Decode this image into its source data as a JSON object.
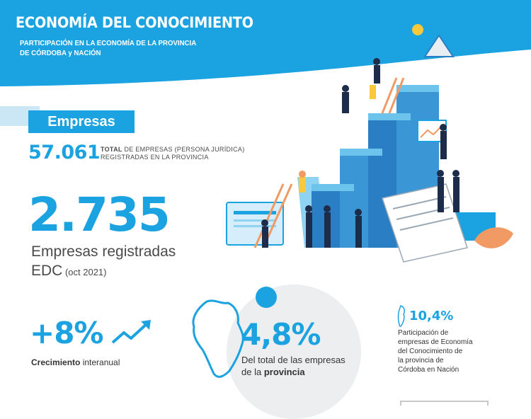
{
  "header": {
    "title": "ECONOMÍA DEL CONOCIMIENTO",
    "subtitle_line1": "PARTICIPACIÓN EN LA ECONOMÍA DE LA PROVINCIA",
    "subtitle_line2": "DE CÓRDOBA y NACIÓN",
    "bg_color": "#1aa3e0"
  },
  "empresas_tag": "Empresas",
  "total": {
    "value": "57.061",
    "label_bold": "TOTAL",
    "label_rest": " DE EMPRESAS (PERSONA JURÍDICA)",
    "label_line2": "REGISTRADAS EN LA PROVINCIA"
  },
  "registered": {
    "value": "2.735",
    "label_line1": "Empresas registradas",
    "label_line2": "EDC",
    "label_date": " (oct 2021)"
  },
  "growth": {
    "value": "+8%",
    "label_bold": "Crecimiento",
    "label_rest": " interanual",
    "icon": "trend-up-icon"
  },
  "province_share": {
    "value": "4,8%",
    "label_line1": "Del total de las empresas",
    "label_line2_pre": "de la ",
    "label_line2_bold": "provincia"
  },
  "nation_share": {
    "value": "10,4%",
    "label_lines": [
      "Participación de",
      "empresas de Economía",
      "del Conocimiento de",
      "la provincia de",
      "Córdoba en Nación"
    ]
  },
  "colors": {
    "accent": "#1aa3e0",
    "light": "#cbe6f5",
    "text": "#4a4a4a"
  }
}
